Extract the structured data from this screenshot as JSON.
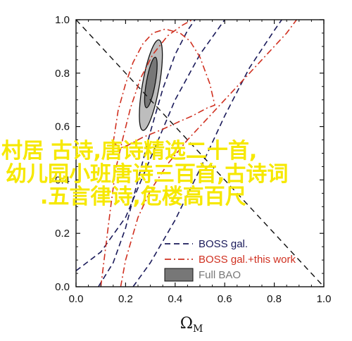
{
  "chart_data": {
    "type": "line",
    "xlabel": "Ω",
    "xlabel_sub": "M",
    "ylabel": "",
    "xlim": [
      0,
      1
    ],
    "ylim": [
      0,
      1
    ],
    "x_ticks": [
      0.0,
      0.2,
      0.4,
      0.6,
      0.8,
      1.0
    ],
    "y_ticks": [
      0.0,
      0.2,
      0.4,
      0.6,
      0.8,
      1.0
    ],
    "x_tick_labels": [
      "0.0",
      "0.2",
      "0.4",
      "0.6",
      "0.8",
      "1.0"
    ],
    "y_tick_labels": [
      "0.0",
      "0.2",
      "0.4",
      "0.6",
      "0.8",
      "1.0"
    ],
    "grid": false,
    "legend_position": "bottom-right",
    "flat_line": {
      "x": [
        0,
        1
      ],
      "y": [
        1,
        0
      ]
    },
    "series": [
      {
        "name": "BOSS gal.",
        "style": "dashed",
        "color": "#1a1a5a",
        "curves": [
          [
            [
              0.0,
              0.06
            ],
            [
              0.1,
              0.13
            ],
            [
              0.2,
              0.26
            ],
            [
              0.3,
              0.48
            ],
            [
              0.4,
              0.7
            ],
            [
              0.5,
              0.87
            ],
            [
              0.6,
              1.0
            ]
          ],
          [
            [
              0.09,
              0.0
            ],
            [
              0.15,
              0.09
            ],
            [
              0.2,
              0.22
            ],
            [
              0.25,
              0.4
            ],
            [
              0.3,
              0.58
            ],
            [
              0.35,
              0.74
            ],
            [
              0.4,
              0.87
            ],
            [
              0.45,
              0.96
            ],
            [
              0.48,
              1.0
            ]
          ],
          [
            [
              0.23,
              0.0
            ],
            [
              0.3,
              0.09
            ],
            [
              0.4,
              0.25
            ],
            [
              0.5,
              0.44
            ],
            [
              0.6,
              0.64
            ],
            [
              0.7,
              0.82
            ],
            [
              0.8,
              0.96
            ],
            [
              0.83,
              1.0
            ]
          ]
        ]
      },
      {
        "name": "BOSS gal.+this work",
        "style": "dashdot",
        "color": "#d03020",
        "curves": [
          [
            [
              0.15,
              0.54
            ],
            [
              0.17,
              0.66
            ],
            [
              0.2,
              0.76
            ],
            [
              0.23,
              0.84
            ],
            [
              0.27,
              0.91
            ],
            [
              0.31,
              0.95
            ],
            [
              0.36,
              0.965
            ],
            [
              0.42,
              0.95
            ],
            [
              0.46,
              0.92
            ],
            [
              0.5,
              0.86
            ],
            [
              0.54,
              0.76
            ],
            [
              0.56,
              0.68
            ],
            [
              0.53,
              0.67
            ],
            [
              0.47,
              0.64
            ],
            [
              0.42,
              0.62
            ],
            [
              0.35,
              0.59
            ],
            [
              0.27,
              0.56
            ],
            [
              0.21,
              0.53
            ],
            [
              0.18,
              0.52
            ],
            [
              0.15,
              0.54
            ]
          ],
          [
            [
              0.1,
              0.0
            ],
            [
              0.12,
              0.15
            ],
            [
              0.14,
              0.3
            ],
            [
              0.16,
              0.44
            ],
            [
              0.19,
              0.56
            ],
            [
              0.22,
              0.67
            ],
            [
              0.26,
              0.78
            ],
            [
              0.31,
              0.87
            ],
            [
              0.37,
              0.94
            ],
            [
              0.43,
              0.98
            ],
            [
              0.47,
              1.0
            ]
          ],
          [
            [
              0.18,
              0.0
            ],
            [
              0.2,
              0.1
            ],
            [
              0.25,
              0.26
            ],
            [
              0.3,
              0.36
            ],
            [
              0.37,
              0.46
            ],
            [
              0.45,
              0.55
            ],
            [
              0.53,
              0.63
            ],
            [
              0.6,
              0.7
            ],
            [
              0.68,
              0.78
            ],
            [
              0.77,
              0.87
            ],
            [
              0.85,
              0.95
            ],
            [
              0.89,
              1.0
            ]
          ]
        ]
      },
      {
        "name": "Full BAO",
        "style": "filled",
        "outer_color": "#bdbdbd",
        "inner_color": "#777777",
        "outer_ellipse": {
          "cx": 0.302,
          "cy": 0.755,
          "rx": 0.034,
          "ry": 0.172,
          "angle_deg": 10
        },
        "inner_ellipse": {
          "cx": 0.302,
          "cy": 0.765,
          "rx": 0.018,
          "ry": 0.096,
          "angle_deg": 10
        }
      }
    ]
  },
  "legend": {
    "items": [
      {
        "label": "BOSS gal.",
        "color": "#1a1a5a",
        "style": "dashed"
      },
      {
        "label": "BOSS gal.+this work",
        "color": "#d03020",
        "style": "dashdot"
      },
      {
        "label": "Full BAO",
        "color": "#777777",
        "style": "filled"
      }
    ]
  },
  "overlay": {
    "lines": [
      "村居 古诗,唐诗精选二十首,",
      "幼儿园小班唐诗三百首,古诗词",
      ".五言律诗,危楼高百尺"
    ],
    "color": "#f6e800"
  }
}
